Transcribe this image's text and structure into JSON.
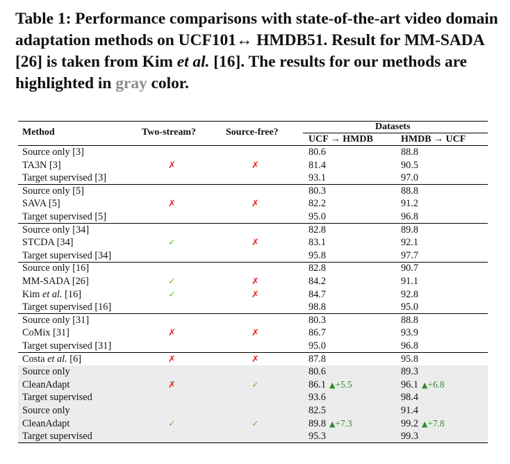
{
  "caption": {
    "text_before": "Table 1: Performance comparisons with state-of-the-art video domain adaptation methods on UCF101↔ HMDB51. Result for MM-SADA [26] is taken from Kim ",
    "italic": "et al.",
    "text_mid": " [16]. The results for our methods are highlighted in ",
    "gray_word": "gray",
    "text_end": " color."
  },
  "header": {
    "method": "Method",
    "two_stream": "Two-stream?",
    "source_free": "Source-free?",
    "datasets": "Datasets",
    "ucf_hmdb": "UCF → HMDB",
    "hmdb_ucf": "HMDB → UCF"
  },
  "symbols": {
    "cross": "✗",
    "check": "✓",
    "up": "▲"
  },
  "colors": {
    "cross": "#e32222",
    "check": "#66c23a",
    "gain": "#2e8b2e",
    "highlight": "#ececec",
    "gray_word": "#8a8a8a"
  },
  "groups": [
    {
      "shade": false,
      "rows": [
        {
          "method": "Source only [3]",
          "two_stream": "",
          "source_free": "",
          "ucf_hmdb": "80.6",
          "hmdb_ucf": "88.8"
        },
        {
          "method": "TA3N [3]",
          "two_stream": "cross",
          "source_free": "cross",
          "ucf_hmdb": "81.4",
          "hmdb_ucf": "90.5"
        },
        {
          "method": "Target supervised [3]",
          "two_stream": "",
          "source_free": "",
          "ucf_hmdb": "93.1",
          "hmdb_ucf": "97.0"
        }
      ]
    },
    {
      "shade": false,
      "rows": [
        {
          "method": "Source only [5]",
          "two_stream": "",
          "source_free": "",
          "ucf_hmdb": "80.3",
          "hmdb_ucf": "88.8"
        },
        {
          "method": "SAVA [5]",
          "two_stream": "cross",
          "source_free": "cross",
          "ucf_hmdb": "82.2",
          "hmdb_ucf": "91.2"
        },
        {
          "method": "Target supervised [5]",
          "two_stream": "",
          "source_free": "",
          "ucf_hmdb": "95.0",
          "hmdb_ucf": "96.8"
        }
      ]
    },
    {
      "shade": false,
      "rows": [
        {
          "method": "Source only [34]",
          "two_stream": "",
          "source_free": "",
          "ucf_hmdb": "82.8",
          "hmdb_ucf": "89.8"
        },
        {
          "method": "STCDA [34]",
          "two_stream": "check",
          "source_free": "cross",
          "ucf_hmdb": "83.1",
          "hmdb_ucf": "92.1"
        },
        {
          "method": "Target supervised [34]",
          "two_stream": "",
          "source_free": "",
          "ucf_hmdb": "95.8",
          "hmdb_ucf": "97.7"
        }
      ]
    },
    {
      "shade": false,
      "rows": [
        {
          "method": "Source only [16]",
          "two_stream": "",
          "source_free": "",
          "ucf_hmdb": "82.8",
          "hmdb_ucf": "90.7"
        },
        {
          "method": "MM-SADA [26]",
          "two_stream": "check",
          "source_free": "cross",
          "ucf_hmdb": "84.2",
          "hmdb_ucf": "91.1"
        },
        {
          "method": "Kim ",
          "method_italic": "et al.",
          "method_tail": " [16]",
          "two_stream": "check",
          "source_free": "cross",
          "ucf_hmdb": "84.7",
          "hmdb_ucf": "92.8"
        },
        {
          "method": "Target supervised [16]",
          "two_stream": "",
          "source_free": "",
          "ucf_hmdb": "98.8",
          "hmdb_ucf": "95.0"
        }
      ]
    },
    {
      "shade": false,
      "rows": [
        {
          "method": "Source only [31]",
          "two_stream": "",
          "source_free": "",
          "ucf_hmdb": "80.3",
          "hmdb_ucf": "88.8"
        },
        {
          "method": "CoMix [31]",
          "two_stream": "cross",
          "source_free": "cross",
          "ucf_hmdb": "86.7",
          "hmdb_ucf": "93.9"
        },
        {
          "method": "Target supervised [31]",
          "two_stream": "",
          "source_free": "",
          "ucf_hmdb": "95.0",
          "hmdb_ucf": "96.8"
        }
      ]
    },
    {
      "shade": false,
      "rows": [
        {
          "method": "Costa ",
          "method_italic": "et al.",
          "method_tail": " [6]",
          "two_stream": "cross",
          "source_free": "cross",
          "ucf_hmdb": "87.8",
          "hmdb_ucf": "95.8"
        }
      ]
    },
    {
      "shade": true,
      "rows": [
        {
          "method": "Source only",
          "two_stream": "",
          "source_free": "",
          "ucf_hmdb": "80.6",
          "hmdb_ucf": "89.3"
        },
        {
          "method": "CleanAdapt",
          "two_stream": "cross",
          "source_free": "check",
          "ucf_hmdb": "86.1",
          "ucf_gain": "+5.5",
          "hmdb_ucf": "96.1",
          "hmdb_gain": "+6.8"
        },
        {
          "method": "Target supervised",
          "two_stream": "",
          "source_free": "",
          "ucf_hmdb": "93.6",
          "hmdb_ucf": "98.4"
        }
      ]
    },
    {
      "shade": true,
      "rows": [
        {
          "method": "Source only",
          "two_stream": "",
          "source_free": "",
          "ucf_hmdb": "82.5",
          "hmdb_ucf": "91.4"
        },
        {
          "method": "CleanAdapt",
          "two_stream": "check",
          "source_free": "check",
          "ucf_hmdb": "89.8",
          "ucf_gain": "+7.3",
          "hmdb_ucf": "99.2",
          "hmdb_gain": "+7.8"
        },
        {
          "method": "Target supervised",
          "two_stream": "",
          "source_free": "",
          "ucf_hmdb": "95.3",
          "hmdb_ucf": "99.3"
        }
      ]
    }
  ]
}
